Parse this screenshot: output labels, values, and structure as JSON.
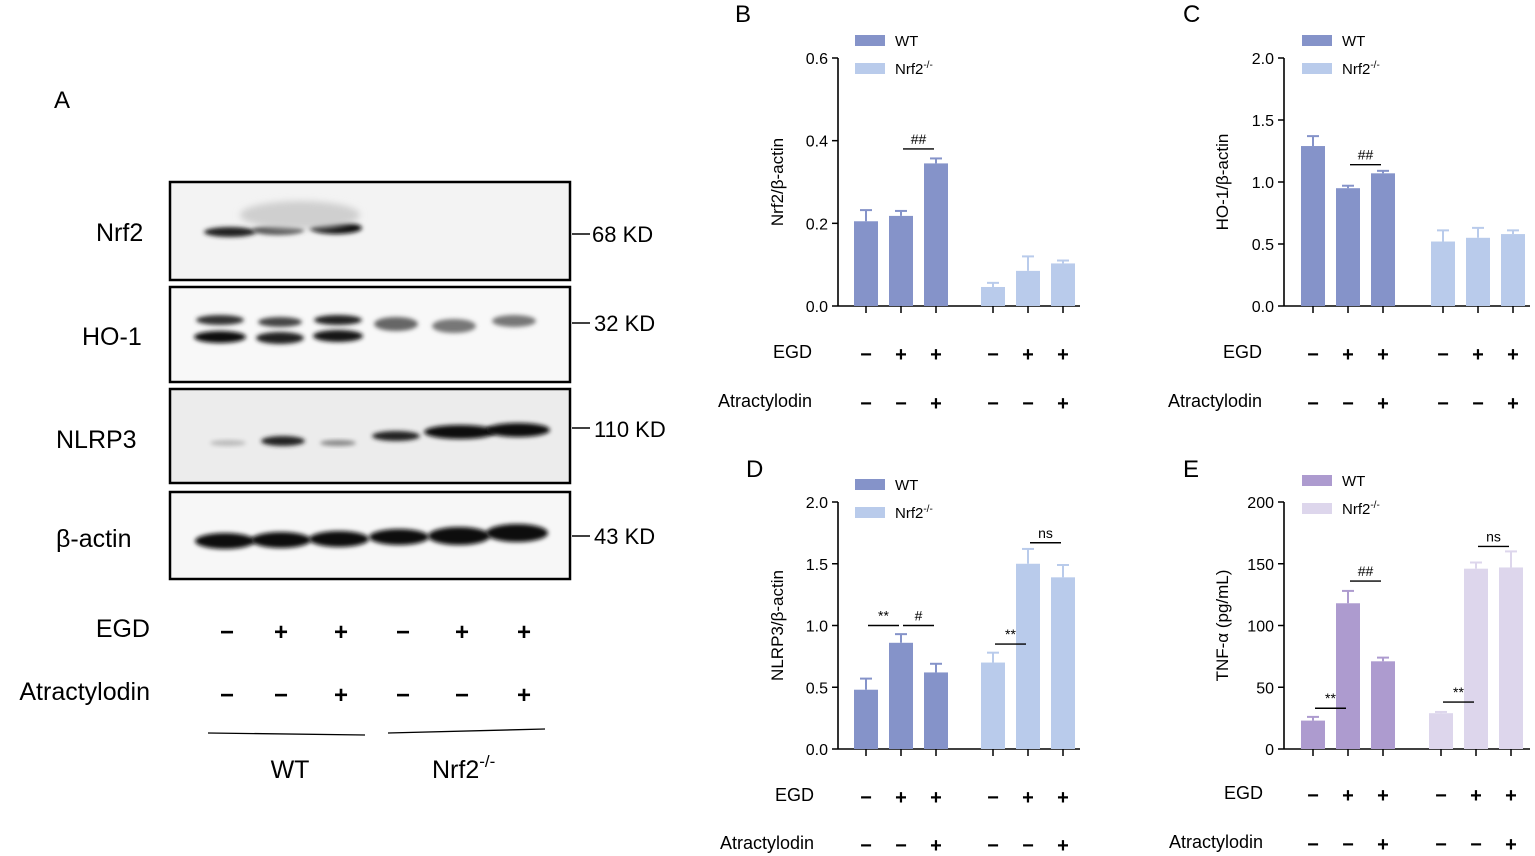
{
  "figure": {
    "panelA": {
      "letter": "A",
      "bands": [
        {
          "name": "Nrf2",
          "size": "68 KD"
        },
        {
          "name": "HO-1",
          "size": "32 KD"
        },
        {
          "name": "NLRP3",
          "size": "110 KD"
        },
        {
          "name": "β-actin",
          "size": "43 KD"
        }
      ],
      "lanes": {
        "egd_label": "EGD",
        "egd": [
          "−",
          "+",
          "+",
          "−",
          "+",
          "+"
        ],
        "atr_label": "Atractylodin",
        "atr": [
          "−",
          "−",
          "+",
          "−",
          "−",
          "+"
        ]
      },
      "groups": {
        "wt": "WT",
        "ko_base": "Nrf2",
        "ko_sup": "-/-"
      }
    }
  },
  "chart_data": [
    {
      "panel": "B",
      "type": "bar",
      "ylabel": "Nrf2/β-actin",
      "ylim": [
        0,
        0.6
      ],
      "yticks": [
        "0.0",
        "0.2",
        "0.4",
        "0.6"
      ],
      "x_rows": {
        "egd_label": "EGD",
        "egd": [
          "−",
          "+",
          "+",
          "−",
          "+",
          "+"
        ],
        "atr_label": "Atractylodin",
        "atr": [
          "−",
          "−",
          "+",
          "−",
          "−",
          "+"
        ]
      },
      "legend": [
        {
          "base": "WT",
          "sup": "",
          "color": "#8593c9"
        },
        {
          "base": "Nrf2",
          "sup": "-/-",
          "color": "#b9cbeb"
        }
      ],
      "series": [
        {
          "name": "WT",
          "color": "#8593c9",
          "values": [
            0.205,
            0.218,
            0.345
          ],
          "errors": [
            0.027,
            0.012,
            0.012
          ]
        },
        {
          "name": "Nrf2-/-",
          "color": "#b9cbeb",
          "values": [
            0.046,
            0.085,
            0.103
          ],
          "errors": [
            0.01,
            0.035,
            0.007
          ]
        }
      ],
      "annotations": [
        {
          "text": "##",
          "from": 1,
          "to": 2,
          "y": 0.38
        }
      ]
    },
    {
      "panel": "C",
      "type": "bar",
      "ylabel": "HO-1/β-actin",
      "ylim": [
        0,
        2.0
      ],
      "yticks": [
        "0.0",
        "0.5",
        "1.0",
        "1.5",
        "2.0"
      ],
      "x_rows": {
        "egd_label": "EGD",
        "egd": [
          "−",
          "+",
          "+",
          "−",
          "+",
          "+"
        ],
        "atr_label": "Atractylodin",
        "atr": [
          "−",
          "−",
          "+",
          "−",
          "−",
          "+"
        ]
      },
      "legend": [
        {
          "base": "WT",
          "sup": "",
          "color": "#8593c9"
        },
        {
          "base": "Nrf2",
          "sup": "-/-",
          "color": "#b9cbeb"
        }
      ],
      "series": [
        {
          "name": "WT",
          "color": "#8593c9",
          "values": [
            1.29,
            0.95,
            1.07
          ],
          "errors": [
            0.08,
            0.02,
            0.02
          ]
        },
        {
          "name": "Nrf2-/-",
          "color": "#b9cbeb",
          "values": [
            0.52,
            0.55,
            0.58
          ],
          "errors": [
            0.09,
            0.08,
            0.03
          ]
        }
      ],
      "annotations": [
        {
          "text": "##",
          "from": 1,
          "to": 2,
          "y": 1.14
        }
      ]
    },
    {
      "panel": "D",
      "type": "bar",
      "ylabel": "NLRP3/β-actin",
      "ylim": [
        0,
        2.0
      ],
      "yticks": [
        "0.0",
        "0.5",
        "1.0",
        "1.5",
        "2.0"
      ],
      "x_rows": {
        "egd_label": "EGD",
        "egd": [
          "−",
          "+",
          "+",
          "−",
          "+",
          "+"
        ],
        "atr_label": "Atractylodin",
        "atr": [
          "−",
          "−",
          "+",
          "−",
          "−",
          "+"
        ]
      },
      "legend": [
        {
          "base": "WT",
          "sup": "",
          "color": "#8593c9"
        },
        {
          "base": "Nrf2",
          "sup": "-/-",
          "color": "#b9cbeb"
        }
      ],
      "series": [
        {
          "name": "WT",
          "color": "#8593c9",
          "values": [
            0.48,
            0.86,
            0.62
          ],
          "errors": [
            0.09,
            0.07,
            0.07
          ]
        },
        {
          "name": "Nrf2-/-",
          "color": "#b9cbeb",
          "values": [
            0.7,
            1.5,
            1.39
          ],
          "errors": [
            0.08,
            0.12,
            0.1
          ]
        }
      ],
      "annotations": [
        {
          "text": "**",
          "from": 0,
          "to": 1,
          "y": 1.0
        },
        {
          "text": "#",
          "from": 1,
          "to": 2,
          "y": 1.0
        },
        {
          "text": "**",
          "from": 3,
          "to": 4,
          "y": 0.85
        },
        {
          "text": "ns",
          "from": 4,
          "to": 5,
          "y": 1.67
        }
      ]
    },
    {
      "panel": "E",
      "type": "bar",
      "ylabel": "TNF-α (pg/mL)",
      "ylim": [
        0,
        200
      ],
      "yticks": [
        "0",
        "50",
        "100",
        "150",
        "200"
      ],
      "x_rows": {
        "egd_label": "EGD",
        "egd": [
          "−",
          "+",
          "+",
          "−",
          "+",
          "+"
        ],
        "atr_label": "Atractylodin",
        "atr": [
          "−",
          "−",
          "+",
          "−",
          "−",
          "+"
        ]
      },
      "legend": [
        {
          "base": "WT",
          "sup": "",
          "color": "#ad9bcf"
        },
        {
          "base": "Nrf2",
          "sup": "-/-",
          "color": "#ddd6ec"
        }
      ],
      "series": [
        {
          "name": "WT",
          "color": "#ad9bcf",
          "values": [
            23,
            118,
            71
          ],
          "errors": [
            3,
            10,
            3
          ]
        },
        {
          "name": "Nrf2-/-",
          "color": "#ddd6ec",
          "values": [
            29,
            146,
            147
          ],
          "errors": [
            1,
            5,
            13
          ]
        }
      ],
      "annotations": [
        {
          "text": "**",
          "from": 0,
          "to": 1,
          "y": 33
        },
        {
          "text": "##",
          "from": 1,
          "to": 2,
          "y": 136
        },
        {
          "text": "**",
          "from": 3,
          "to": 4,
          "y": 38
        },
        {
          "text": "ns",
          "from": 4,
          "to": 5,
          "y": 164
        }
      ]
    }
  ]
}
